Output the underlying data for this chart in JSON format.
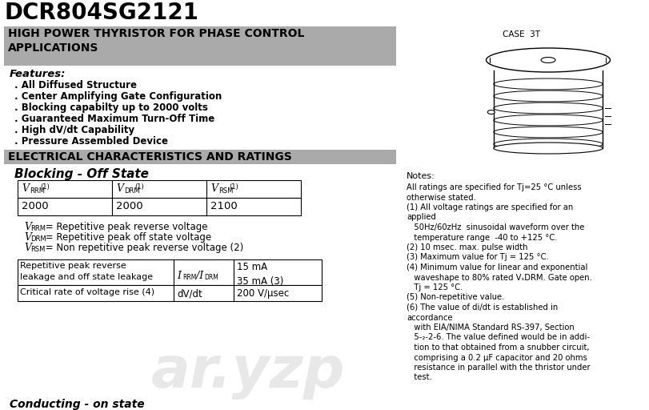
{
  "title": "DCR804SG2121",
  "subtitle": "HIGH POWER THYRISTOR FOR PHASE CONTROL\nAPPLICATIONS",
  "features_header": "Features:",
  "features": [
    ". All Diffused Structure",
    ". Center Amplifying Gate Configuration",
    ". Blocking capabilty up to 2000 volts",
    ". Guaranteed Maximum Turn-Off Time",
    ". High dV/dt Capability",
    ". Pressure Assembled Device"
  ],
  "elec_header": "ELECTRICAL CHARACTERISTICS AND RATINGS",
  "blocking_header": "Blocking - Off State",
  "table1_header_labels": [
    "V_RRM (1)",
    "V_DRM (1)",
    "V_RSM (1)"
  ],
  "table1_values": [
    "2000",
    "2000",
    "2100"
  ],
  "defs": [
    [
      "V",
      "RRM",
      " = Repetitive peak reverse voltage"
    ],
    [
      "V",
      "DRM",
      " = Repetitive peak off state voltage"
    ],
    [
      "V",
      "RSM",
      " = Non repetitive peak reverse voltage (2)"
    ]
  ],
  "case_label": "CASE  3T",
  "notes_title": "Notes:",
  "notes": [
    "All ratings are specified for Tj=25 °C unless",
    "otherwise stated.",
    "(1) All voltage ratings are specified for an",
    "applied",
    "   50Hz/60zHz  sinusoidal waveform over the",
    "   temperature range  -40 to +125 °C.",
    "(2) 10 msec. max. pulse width",
    "(3) Maximum value for Tj = 125 °C.",
    "(4) Minimum value for linear and exponential",
    "   waveshape to 80% rated VₛDRM. Gate open.",
    "   Tj = 125 °C.",
    "(5) Non-repetitive value.",
    "(6) The value of di/dt is established in",
    "accordance",
    "   with EIA/NIMA Standard RS-397, Section",
    "   5-₂-2-6. The value defined would be in addi-",
    "   tion to that obtained from a snubber circuit,",
    "   comprising a 0.2 μF capacitor and 20 ohms",
    "   resistance in parallel with the thristor under",
    "   test."
  ],
  "conducting_label": "Conducting - on state",
  "bg_color": "#ffffff",
  "gray_color": "#aaaaaa",
  "table2_row1_col1": "Repetitive peak reverse\nleakage and off state leakage",
  "table2_row1_col3": "15 mA\n35 mA (3)",
  "table2_row2_col1": "Critical rate of voltage rise (4)",
  "table2_row2_col2": "dV/dt",
  "table2_row2_col3": "200 V/μsec",
  "watermark": "ar.yzp"
}
